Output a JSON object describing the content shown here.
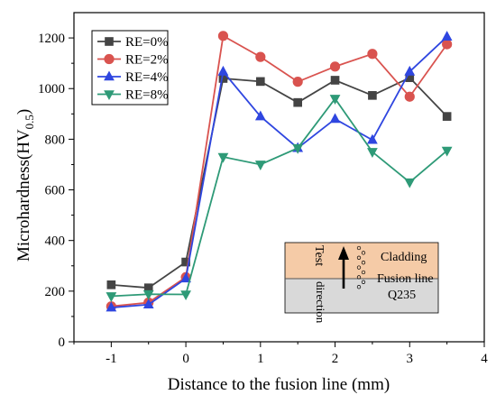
{
  "chart_data": {
    "type": "line",
    "xlabel": "Distance to the fusion line (mm)",
    "ylabel_main": "Microhardness(HV",
    "ylabel_sub": "0.5",
    "ylabel_close": ")",
    "xlim": [
      -1.5,
      4
    ],
    "ylim": [
      0,
      1300
    ],
    "x_ticks": [
      -1,
      0,
      1,
      2,
      3,
      4
    ],
    "x_tick_labels": [
      "-1",
      "0",
      "1",
      "2",
      "3",
      "4"
    ],
    "y_ticks": [
      0,
      200,
      400,
      600,
      800,
      1000,
      1200
    ],
    "y_tick_labels": [
      "0",
      "200",
      "400",
      "600",
      "800",
      "1000",
      "1200"
    ],
    "legend_position": "top-left",
    "grid": false,
    "x": [
      -1,
      -0.5,
      0,
      0.5,
      1,
      1.5,
      2,
      2.5,
      3,
      3.5
    ],
    "series": [
      {
        "name": "RE=0%",
        "color": "#444444",
        "marker": "square",
        "values": [
          225,
          213,
          315,
          1040,
          1028,
          945,
          1033,
          973,
          1043,
          890
        ]
      },
      {
        "name": "RE=2%",
        "color": "#d9534f",
        "marker": "circle",
        "values": [
          140,
          155,
          255,
          1208,
          1125,
          1027,
          1087,
          1137,
          968,
          1175
        ]
      },
      {
        "name": "RE=4%",
        "color": "#2f46e0",
        "marker": "triangle-up",
        "values": [
          135,
          147,
          250,
          1067,
          890,
          765,
          880,
          797,
          1067,
          1205
        ]
      },
      {
        "name": "RE=8%",
        "color": "#2e9a77",
        "marker": "triangle-down",
        "values": [
          180,
          188,
          187,
          730,
          700,
          765,
          960,
          750,
          630,
          755
        ]
      }
    ],
    "inset": {
      "cladding_label": "Cladding",
      "fusion_line_label": "Fusion line",
      "substrate_label": "Q235",
      "arrow_label_1": "Test",
      "arrow_label_2": "direction",
      "cladding_color": "#f5cba7",
      "substrate_color": "#d9d9d9"
    }
  }
}
